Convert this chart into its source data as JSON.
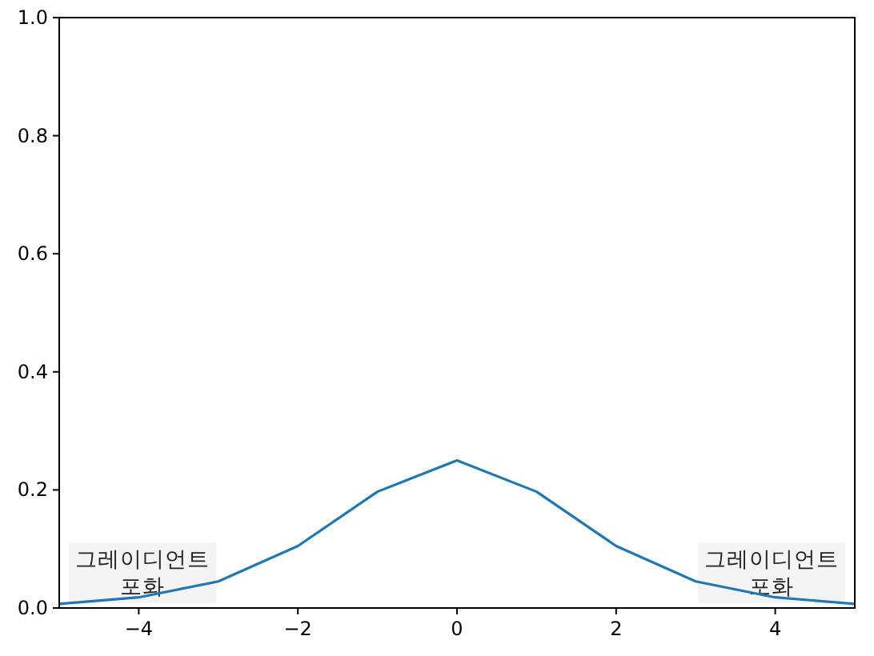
{
  "chart_data": {
    "type": "line",
    "x": [
      -5,
      -4,
      -3,
      -2,
      -1,
      0,
      1,
      2,
      3,
      4,
      5
    ],
    "series": [
      {
        "color": "#1f77b4",
        "values": [
          0.007,
          0.018,
          0.045,
          0.105,
          0.197,
          0.25,
          0.197,
          0.105,
          0.045,
          0.018,
          0.007
        ]
      }
    ],
    "xlim": [
      -5,
      5
    ],
    "ylim": [
      0,
      1
    ],
    "xticks": [
      {
        "value": -4,
        "label": "−4"
      },
      {
        "value": -2,
        "label": "−2"
      },
      0,
      2,
      4
    ],
    "yticks": [
      {
        "value": 0,
        "label": "0.0"
      },
      {
        "value": 0.2,
        "label": "0.2"
      },
      {
        "value": 0.4,
        "label": "0.4"
      },
      {
        "value": 0.6,
        "label": "0.6"
      },
      {
        "value": 0.8,
        "label": "0.8"
      },
      {
        "value": 1,
        "label": "1.0"
      }
    ],
    "annotations": [
      "그레이디언트\n포화",
      "그레이디언트\n포화"
    ],
    "line_style": "solid",
    "marker": "none"
  }
}
